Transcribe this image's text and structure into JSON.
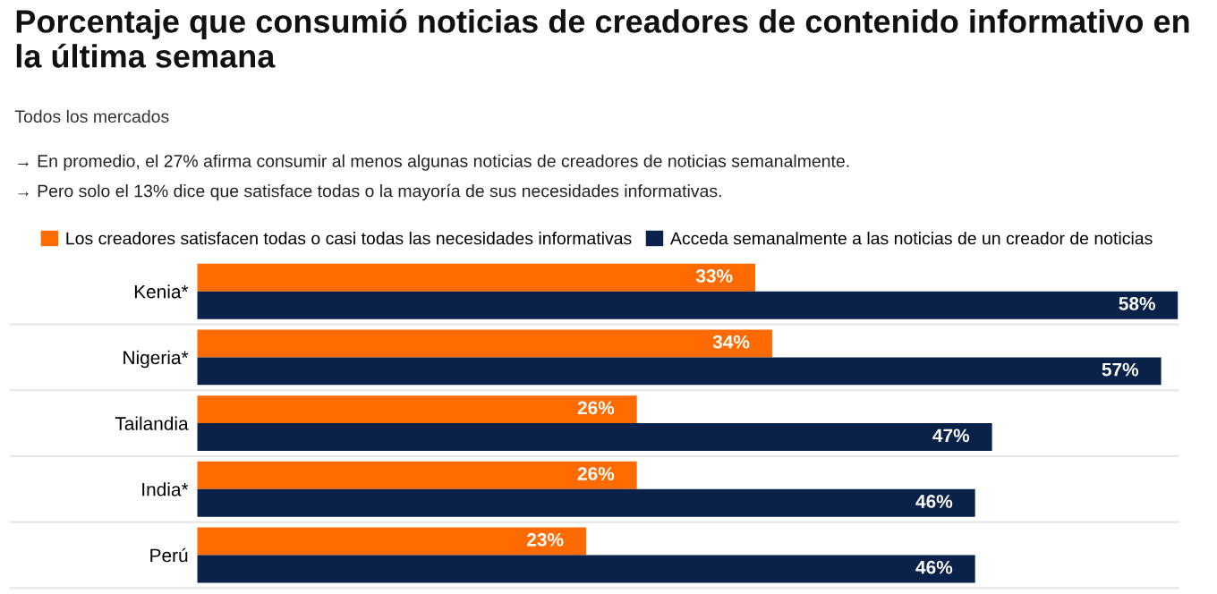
{
  "chart_data": {
    "type": "bar",
    "orientation": "horizontal",
    "title": "Porcentaje que consumió noticias de creadores de contenido informativo en la última semana",
    "subtitle": "Todos los mercados",
    "annotations": [
      "→ En promedio, el 27% afirma consumir al menos algunas noticias de creadores de noticias semanalmente.",
      "→ Pero solo el 13% dice que satisface todas o la mayoría de sus necesidades informativas."
    ],
    "categories": [
      "Kenia*",
      "Nigeria*",
      "Tailandia",
      "India*",
      "Perú"
    ],
    "series": [
      {
        "name": "Los creadores satisfacen todas o casi todas las necesidades informativas",
        "color": "#ff6b00",
        "values": [
          33,
          34,
          26,
          26,
          23
        ],
        "value_labels": [
          "33%",
          "34%",
          "26%",
          "26%",
          "23%"
        ]
      },
      {
        "name": "Acceda semanalmente a las noticias de un creador de noticias",
        "color": "#0a2149",
        "values": [
          58,
          57,
          47,
          46,
          46
        ],
        "value_labels": [
          "58%",
          "57%",
          "47%",
          "46%",
          "46%"
        ]
      }
    ],
    "legend": "top",
    "grid": false
  }
}
